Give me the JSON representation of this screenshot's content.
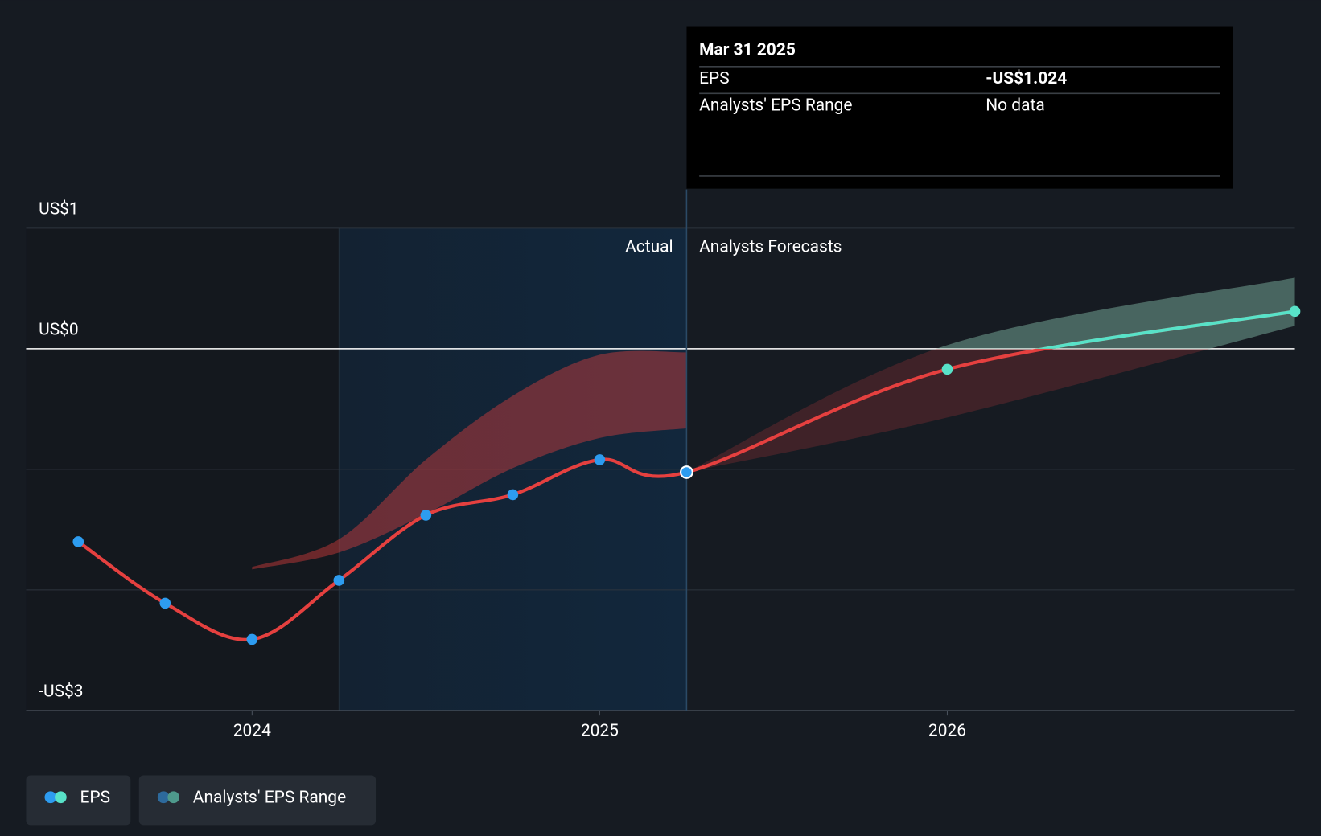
{
  "chart_data": {
    "type": "line",
    "xlim": [
      2023.35,
      2027.0
    ],
    "xticks": [
      2024,
      2025,
      2026
    ],
    "ylim": [
      -3,
      1
    ],
    "yticks": [
      {
        "value": 1,
        "label": "US$1"
      },
      {
        "value": 0,
        "label": "US$0"
      },
      {
        "value": -1,
        "label": null
      },
      {
        "value": -2,
        "label": null
      },
      {
        "value": -3,
        "label": "-US$3"
      }
    ],
    "grid": true,
    "highlight_start": 2024.25,
    "divider_x": 2025.25,
    "actual_label": "Actual",
    "forecast_label": "Analysts Forecasts",
    "series": [
      {
        "name": "EPS",
        "color": "#e5403f",
        "positive_color": "#58e2c8",
        "actual_point_color": "#2d9cf0",
        "x": [
          2023.5,
          2023.75,
          2024.0,
          2024.25,
          2024.5,
          2024.75,
          2025.0,
          2025.25,
          2026.0,
          2027.0
        ],
        "values": [
          -1.6,
          -2.11,
          -2.41,
          -1.92,
          -1.38,
          -1.21,
          -0.92,
          -1.024,
          -0.17,
          0.31
        ]
      }
    ],
    "bands": {
      "name": "Analysts' EPS Range",
      "color": "#e5403f",
      "positive_color": "#58e2c8",
      "parts": [
        {
          "x": [
            2024.0,
            2024.25,
            2024.5,
            2024.75,
            2025.0,
            2025.25
          ],
          "upper": [
            -1.81,
            -1.58,
            -0.92,
            -0.39,
            -0.05,
            -0.03
          ],
          "lower": [
            -1.83,
            -1.69,
            -1.37,
            -0.99,
            -0.74,
            -0.66
          ]
        },
        {
          "x": [
            2025.25,
            2026.0,
            2027.0
          ],
          "upper": [
            -1.024,
            0.03,
            0.59
          ],
          "lower": [
            -1.024,
            -0.57,
            0.19
          ]
        }
      ]
    },
    "tooltip": {
      "date": "Mar 31 2025",
      "rows": [
        {
          "label": "EPS",
          "value": "-US$1.024"
        },
        {
          "label": "Analysts' EPS Range",
          "value": "No data"
        }
      ]
    }
  }
}
